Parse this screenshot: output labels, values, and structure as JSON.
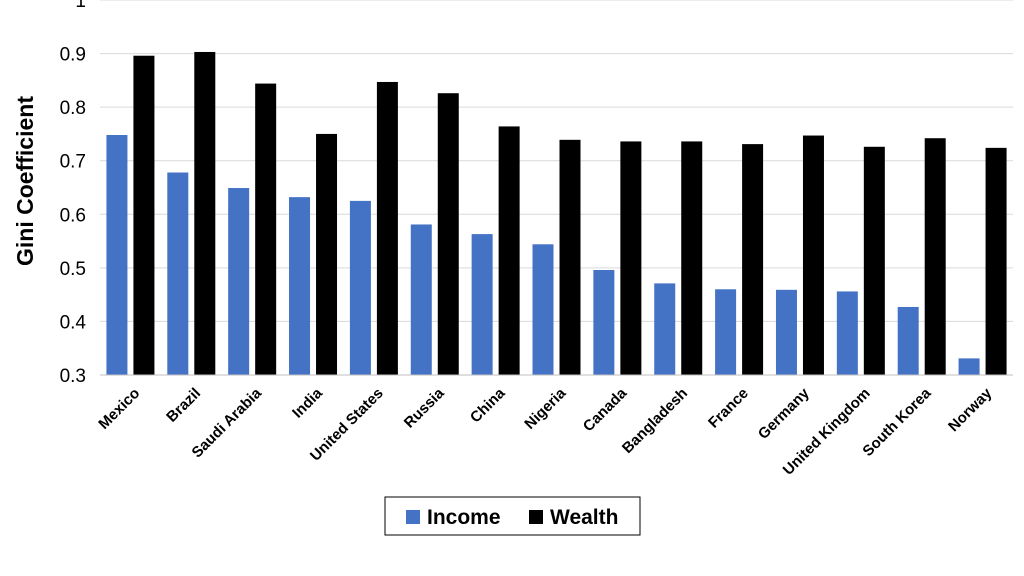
{
  "chart_data": {
    "type": "bar",
    "title": "",
    "xlabel": "",
    "ylabel": "Gini Coefficient",
    "ylim": [
      0.3,
      1
    ],
    "yticks": [
      "0.3",
      "0.4",
      "0.5",
      "0.6",
      "0.7",
      "0.8",
      "0.9",
      "1"
    ],
    "grid": true,
    "legend_position": "bottom",
    "categories": [
      "Mexico",
      "Brazil",
      "Saudi Arabia",
      "India",
      "United States",
      "Russia",
      "China",
      "Nigeria",
      "Canada",
      "Bangladesh",
      "France",
      "Germany",
      "United Kingdom",
      "South Korea",
      "Norway"
    ],
    "series": [
      {
        "name": "Income",
        "color": "#4472c4",
        "values": [
          0.748,
          0.678,
          0.649,
          0.632,
          0.625,
          0.581,
          0.563,
          0.544,
          0.496,
          0.471,
          0.46,
          0.459,
          0.456,
          0.427,
          0.331
        ]
      },
      {
        "name": "Wealth",
        "color": "#000000",
        "values": [
          0.896,
          0.903,
          0.844,
          0.75,
          0.847,
          0.826,
          0.764,
          0.739,
          0.736,
          0.736,
          0.731,
          0.747,
          0.726,
          0.742,
          0.724
        ]
      }
    ]
  }
}
